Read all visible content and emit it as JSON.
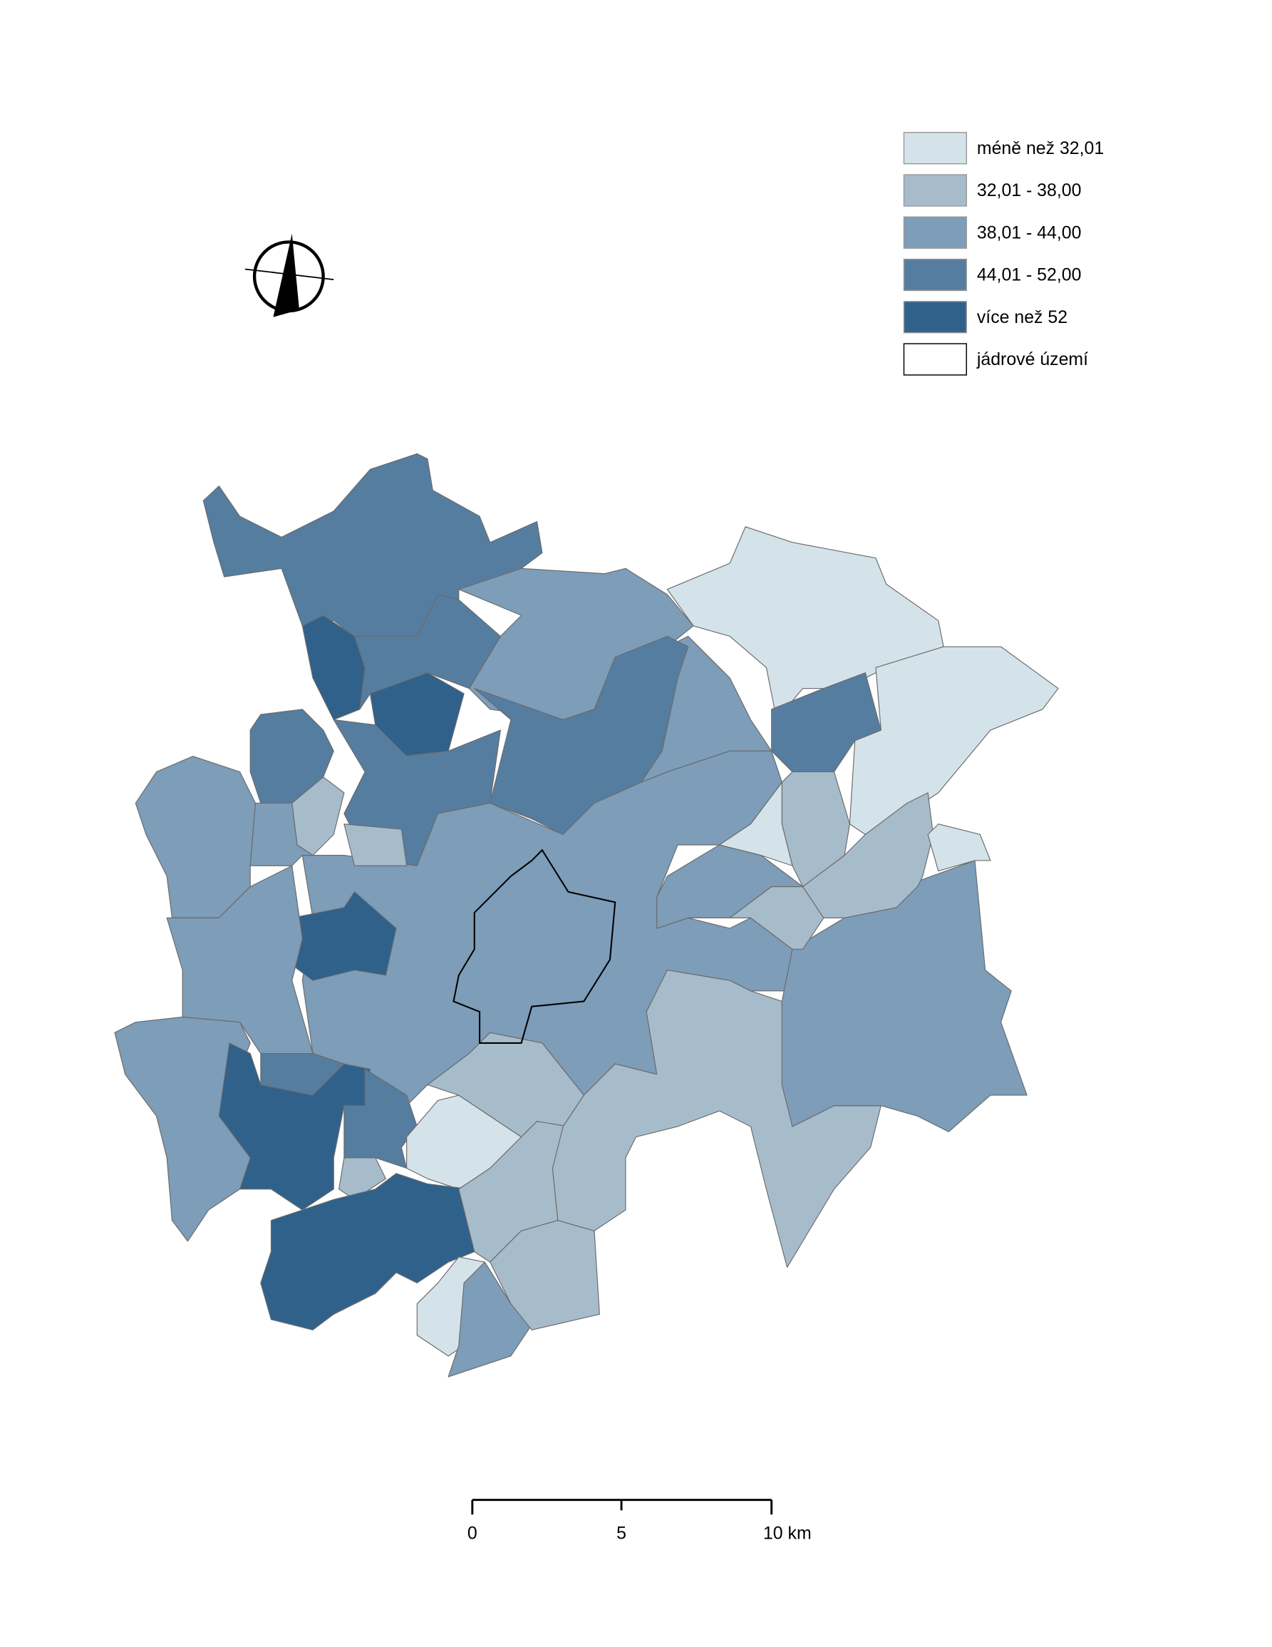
{
  "legend": {
    "items": [
      {
        "label": "méně než 32,01",
        "color": "#d4e3e9"
      },
      {
        "label": "32,01 - 38,00",
        "color": "#a7bccb"
      },
      {
        "label": "38,01 - 44,00",
        "color": "#7d9db8"
      },
      {
        "label": "44,01 - 52,00",
        "color": "#557da0"
      },
      {
        "label": "více než 52",
        "color": "#2f618b"
      },
      {
        "label": "jádrové území",
        "color": "#ffffff"
      }
    ]
  },
  "scale_bar": {
    "labels": [
      "0",
      "5",
      "10 km"
    ]
  }
}
